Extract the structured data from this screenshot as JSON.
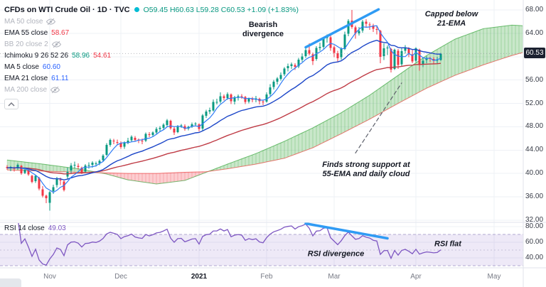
{
  "legend": {
    "title": "CFDs on WTI Crude Oil · 1D · TVC",
    "ohlc": "O59.45 H60.63 L59.28 C60.53 +1.09 (+1.83%)",
    "rows": [
      {
        "name": "MA 50 close",
        "hidden": true,
        "values": []
      },
      {
        "name": "EMA 55 close",
        "hidden": false,
        "values": [
          {
            "text": "58.67",
            "color": "#f23645"
          }
        ]
      },
      {
        "name": "BB 20 close 2",
        "hidden": true,
        "values": []
      },
      {
        "name": "Ichimoku 9 26 52 26",
        "hidden": false,
        "values": [
          {
            "text": "58.96",
            "color": "#089981"
          },
          {
            "text": "54.61",
            "color": "#f23645"
          }
        ]
      },
      {
        "name": "MA 5 close",
        "hidden": false,
        "values": [
          {
            "text": "60.60",
            "color": "#2962ff"
          }
        ]
      },
      {
        "name": "EMA 21 close",
        "hidden": false,
        "values": [
          {
            "text": "61.11",
            "color": "#2962ff"
          }
        ]
      },
      {
        "name": "MA 200 close",
        "hidden": true,
        "values": []
      }
    ]
  },
  "rsi_legend": {
    "name": "RSI 14 close",
    "value": "49.03"
  },
  "price_axis": {
    "labels": [
      {
        "text": "68.00",
        "value": 68
      },
      {
        "text": "64.00",
        "value": 64
      },
      {
        "text": "56.00",
        "value": 56
      },
      {
        "text": "52.00",
        "value": 52
      },
      {
        "text": "48.00",
        "value": 48
      },
      {
        "text": "44.00",
        "value": 44
      },
      {
        "text": "40.00",
        "value": 40
      },
      {
        "text": "36.00",
        "value": 36
      },
      {
        "text": "32.00",
        "value": 32
      }
    ],
    "grid_values": [
      68,
      64,
      60,
      56,
      52,
      48,
      44,
      40,
      36,
      32
    ],
    "last_price_label": "60.53"
  },
  "rsi_axis": {
    "labels": [
      {
        "text": "80.00",
        "value": 80
      },
      {
        "text": "60.00",
        "value": 60
      },
      {
        "text": "40.00",
        "value": 40
      }
    ]
  },
  "time_axis": {
    "labels": [
      {
        "text": "Nov",
        "day": 12,
        "year": false
      },
      {
        "text": "Dec",
        "day": 32,
        "year": false
      },
      {
        "text": "2021",
        "day": 54,
        "year": true
      },
      {
        "text": "Feb",
        "day": 73,
        "year": false
      },
      {
        "text": "Mar",
        "day": 92,
        "year": false
      },
      {
        "text": "Apr",
        "day": 115,
        "year": false
      },
      {
        "text": "May",
        "day": 137,
        "year": false
      }
    ]
  },
  "colors": {
    "up": "#089981",
    "down": "#f23645",
    "cloud_up": "rgba(76,175,80,0.30)",
    "cloud_down": "rgba(244,88,99,0.30)",
    "senkou_a": "#4caf50",
    "senkou_b": "#ef5350",
    "ma5": "#2e7bf6",
    "ema21": "#1c46c8",
    "ema55": "#bf3b45",
    "rsi": "#7e57c2",
    "rsi_band": "rgba(126,87,194,0.13)",
    "rsi_band_line": "#b1a8d0",
    "rsi_mid_line": "#c6c2d8",
    "trendline": "#2f9bf4",
    "pointer": "#5d606b",
    "grid": "#eef1f6",
    "border": "#e0e3eb",
    "last_price_line": "#9598a1",
    "badge_bg": "#1b2130",
    "realtime_dot": "#00bcd4",
    "ohlc_text": "#089981"
  },
  "chart_data": {
    "type": "candlestick",
    "symbol": "CFDs on WTI Crude Oil",
    "timeframe": "1D",
    "exchange": "TVC",
    "last": {
      "o": 59.45,
      "h": 60.63,
      "l": 59.28,
      "c": 60.53,
      "change": 1.09,
      "change_pct": 1.83
    },
    "price_range": [
      32,
      68
    ],
    "rsi_range": [
      20,
      90
    ],
    "candles": [
      [
        41.1,
        41.4,
        40.6,
        40.96
      ],
      [
        40.9,
        41.3,
        40.4,
        41.12
      ],
      [
        41.0,
        41.2,
        40.3,
        40.83
      ],
      [
        40.9,
        41.7,
        40.6,
        41.46
      ],
      [
        41.3,
        41.5,
        39.8,
        40.03
      ],
      [
        40.1,
        40.9,
        39.9,
        40.64
      ],
      [
        40.6,
        40.8,
        39.6,
        39.85
      ],
      [
        39.6,
        39.8,
        38.3,
        38.56
      ],
      [
        38.7,
        39.7,
        38.4,
        39.57
      ],
      [
        39.2,
        39.4,
        37.1,
        37.39
      ],
      [
        37.3,
        37.8,
        35.9,
        36.17
      ],
      [
        36.2,
        36.4,
        34.9,
        35.79
      ],
      [
        35.0,
        37.0,
        33.64,
        36.81
      ],
      [
        37.0,
        38.1,
        36.5,
        37.66
      ],
      [
        38.0,
        39.4,
        37.6,
        39.15
      ],
      [
        38.9,
        39.3,
        38.0,
        38.79
      ],
      [
        38.6,
        38.8,
        36.9,
        37.14
      ],
      [
        39.5,
        41.0,
        39.0,
        40.29
      ],
      [
        40.5,
        41.8,
        40.0,
        41.36
      ],
      [
        41.4,
        42.0,
        40.9,
        41.45
      ],
      [
        41.3,
        41.7,
        40.7,
        41.12
      ],
      [
        41.0,
        41.2,
        39.9,
        40.13
      ],
      [
        40.3,
        41.6,
        40.1,
        41.34
      ],
      [
        41.3,
        41.9,
        40.8,
        41.43
      ],
      [
        41.5,
        42.1,
        41.0,
        41.82
      ],
      [
        41.7,
        42.0,
        41.2,
        41.74
      ],
      [
        41.8,
        42.4,
        41.4,
        42.15
      ],
      [
        42.3,
        43.3,
        42.0,
        43.06
      ],
      [
        43.2,
        45.2,
        43.0,
        44.91
      ],
      [
        44.9,
        46.0,
        44.6,
        45.71
      ],
      [
        45.6,
        45.9,
        45.0,
        45.53
      ],
      [
        45.4,
        45.8,
        44.9,
        45.34
      ],
      [
        45.2,
        45.5,
        44.2,
        44.55
      ],
      [
        44.6,
        45.5,
        44.2,
        45.28
      ],
      [
        45.3,
        46.1,
        45.0,
        45.64
      ],
      [
        45.7,
        46.5,
        45.4,
        46.26
      ],
      [
        46.1,
        46.4,
        45.5,
        45.76
      ],
      [
        45.8,
        46.0,
        45.2,
        45.6
      ],
      [
        45.6,
        46.0,
        45.0,
        45.52
      ],
      [
        45.6,
        47.0,
        45.4,
        46.78
      ],
      [
        46.7,
        47.1,
        46.2,
        46.57
      ],
      [
        46.6,
        47.2,
        46.3,
        46.99
      ],
      [
        47.0,
        47.9,
        46.7,
        47.62
      ],
      [
        47.6,
        48.1,
        47.2,
        47.82
      ],
      [
        47.8,
        48.6,
        47.5,
        48.36
      ],
      [
        48.3,
        49.3,
        48.0,
        49.1
      ],
      [
        49.0,
        49.2,
        47.5,
        47.74
      ],
      [
        47.7,
        48.0,
        46.6,
        47.02
      ],
      [
        47.1,
        48.3,
        46.9,
        48.12
      ],
      [
        48.1,
        48.5,
        47.8,
        48.23
      ],
      [
        48.1,
        48.4,
        47.3,
        47.62
      ],
      [
        47.7,
        48.2,
        47.4,
        48.0
      ],
      [
        48.0,
        48.7,
        47.8,
        48.4
      ],
      [
        48.4,
        48.8,
        48.1,
        48.52
      ],
      [
        48.4,
        48.6,
        47.2,
        47.62
      ],
      [
        47.7,
        50.2,
        47.3,
        49.93
      ],
      [
        49.9,
        50.9,
        49.5,
        50.63
      ],
      [
        50.6,
        51.3,
        50.2,
        50.83
      ],
      [
        50.8,
        52.7,
        50.6,
        52.24
      ],
      [
        52.2,
        52.8,
        51.8,
        52.25
      ],
      [
        52.3,
        53.9,
        52.0,
        53.21
      ],
      [
        53.2,
        53.5,
        52.5,
        52.91
      ],
      [
        52.9,
        53.9,
        52.6,
        53.57
      ],
      [
        53.5,
        53.7,
        51.9,
        52.36
      ],
      [
        52.3,
        53.3,
        51.8,
        52.98
      ],
      [
        53.0,
        53.5,
        52.5,
        53.24
      ],
      [
        53.2,
        53.6,
        52.8,
        53.13
      ],
      [
        53.1,
        53.3,
        51.9,
        52.27
      ],
      [
        52.3,
        53.0,
        52.0,
        52.77
      ],
      [
        52.8,
        53.1,
        52.2,
        52.61
      ],
      [
        52.6,
        53.3,
        52.2,
        52.85
      ],
      [
        52.8,
        53.0,
        51.8,
        52.34
      ],
      [
        52.3,
        52.6,
        51.7,
        52.2
      ],
      [
        52.3,
        53.9,
        52.1,
        53.55
      ],
      [
        53.6,
        55.3,
        53.3,
        54.76
      ],
      [
        54.8,
        56.0,
        54.4,
        55.69
      ],
      [
        55.7,
        56.5,
        55.2,
        56.23
      ],
      [
        56.2,
        57.3,
        55.9,
        56.85
      ],
      [
        57.0,
        58.2,
        56.7,
        57.97
      ],
      [
        58.0,
        58.8,
        57.5,
        58.36
      ],
      [
        58.4,
        59.0,
        57.9,
        58.68
      ],
      [
        58.6,
        58.9,
        57.7,
        58.24
      ],
      [
        58.3,
        59.8,
        58.0,
        59.47
      ],
      [
        59.5,
        60.6,
        59.1,
        60.05
      ],
      [
        60.1,
        61.5,
        59.8,
        61.14
      ],
      [
        61.1,
        62.3,
        60.2,
        60.52
      ],
      [
        60.4,
        60.7,
        58.6,
        59.24
      ],
      [
        59.6,
        61.8,
        59.3,
        61.49
      ],
      [
        61.5,
        62.4,
        61.0,
        61.67
      ],
      [
        61.7,
        63.4,
        61.4,
        63.22
      ],
      [
        63.2,
        63.8,
        62.4,
        63.53
      ],
      [
        63.3,
        63.6,
        61.0,
        61.5
      ],
      [
        61.6,
        61.9,
        59.9,
        60.64
      ],
      [
        60.6,
        61.0,
        59.2,
        59.75
      ],
      [
        59.9,
        61.6,
        59.5,
        61.28
      ],
      [
        61.3,
        64.3,
        61.1,
        63.83
      ],
      [
        63.9,
        66.4,
        63.5,
        66.09
      ],
      [
        66.2,
        67.98,
        64.8,
        65.05
      ],
      [
        65.0,
        65.3,
        63.1,
        64.01
      ],
      [
        64.0,
        65.1,
        63.6,
        64.44
      ],
      [
        64.5,
        66.3,
        64.1,
        66.02
      ],
      [
        66.0,
        66.4,
        65.0,
        65.61
      ],
      [
        65.5,
        65.9,
        64.6,
        65.39
      ],
      [
        65.3,
        65.6,
        64.2,
        64.8
      ],
      [
        64.7,
        65.2,
        63.8,
        64.6
      ],
      [
        64.4,
        64.6,
        58.9,
        60.0
      ],
      [
        60.1,
        62.3,
        59.4,
        61.44
      ],
      [
        61.5,
        61.9,
        60.3,
        61.55
      ],
      [
        61.3,
        61.5,
        57.3,
        57.76
      ],
      [
        57.9,
        61.4,
        57.7,
        61.18
      ],
      [
        61.0,
        61.3,
        57.9,
        58.56
      ],
      [
        58.7,
        61.5,
        58.3,
        60.97
      ],
      [
        61.0,
        62.0,
        60.5,
        61.56
      ],
      [
        61.4,
        61.6,
        59.9,
        60.55
      ],
      [
        60.4,
        61.1,
        58.9,
        59.16
      ],
      [
        59.3,
        61.6,
        59.0,
        61.45
      ],
      [
        61.2,
        61.4,
        57.6,
        58.65
      ],
      [
        58.7,
        59.9,
        58.2,
        59.33
      ],
      [
        59.4,
        60.1,
        58.9,
        59.77
      ],
      [
        59.7,
        60.0,
        59.1,
        59.6
      ],
      [
        59.6,
        59.9,
        58.8,
        59.32
      ],
      [
        59.4,
        60.0,
        58.9,
        59.44
      ],
      [
        59.45,
        60.63,
        59.28,
        60.53
      ]
    ],
    "ichimoku_cloud": {
      "params": "9 26 52 26",
      "senkou_points": [
        [
          0,
          42.3,
          40.6
        ],
        [
          10,
          41.6,
          40.4
        ],
        [
          20,
          40.8,
          40.2
        ],
        [
          28,
          39.9,
          40.1
        ],
        [
          34,
          38.9,
          40.0
        ],
        [
          42,
          38.2,
          40.0
        ],
        [
          50,
          38.8,
          40.2
        ],
        [
          56,
          40.2,
          40.3
        ],
        [
          62,
          41.6,
          40.8
        ],
        [
          70,
          43.4,
          41.6
        ],
        [
          78,
          45.5,
          42.6
        ],
        [
          86,
          47.8,
          44.4
        ],
        [
          94,
          50.4,
          46.8
        ],
        [
          102,
          53.4,
          49.3
        ],
        [
          110,
          56.8,
          52.0
        ],
        [
          118,
          60.2,
          54.6
        ],
        [
          126,
          63.0,
          56.8
        ],
        [
          134,
          64.8,
          58.6
        ],
        [
          142,
          65.4,
          60.2
        ],
        [
          148,
          65.2,
          61.2
        ]
      ]
    },
    "overlays": [
      {
        "kind": "sma",
        "period": 5,
        "color_key": "ma5"
      },
      {
        "kind": "ema",
        "period": 21,
        "color_key": "ema21"
      },
      {
        "kind": "ema",
        "period": 55,
        "color_key": "ema55"
      }
    ],
    "rsi": {
      "period": 14,
      "last": 49.03,
      "bands": [
        70,
        50,
        30
      ]
    },
    "drawings": {
      "price_trendline": {
        "from": {
          "day": 84,
          "price": 61.6
        },
        "to": {
          "day": 104.5,
          "price": 68.1
        }
      },
      "rsi_trendline": {
        "from": {
          "day": 84,
          "rsi": 84
        },
        "to": {
          "day": 107,
          "rsi": 65
        }
      },
      "support_pointer": {
        "from": {
          "day": 98,
          "price": 43.5
        },
        "to": {
          "day": 111,
          "price": 55.5
        }
      },
      "texts": [
        {
          "name": "annotation-bearish-divergence",
          "text": "Bearish\ndivergence",
          "day": 72,
          "price": 64.6,
          "bold": true,
          "italic": false
        },
        {
          "name": "annotation-capped-below-21ema",
          "text": "Capped below\n21-EMA",
          "day": 125,
          "price": 66.4,
          "bold": false,
          "italic": true
        },
        {
          "name": "annotation-support",
          "text": "Finds strong support at\n55-EMA and daily cloud",
          "day": 101,
          "price": 40.6,
          "bold": false,
          "italic": true
        },
        {
          "name": "annotation-rsi-divergence",
          "text": "RSI divergence",
          "day": 92.5,
          "rsi": 45,
          "bold": false,
          "italic": true
        },
        {
          "name": "annotation-rsi-flat",
          "text": "RSI flat",
          "day": 124,
          "rsi": 57,
          "bold": false,
          "italic": true
        }
      ]
    }
  }
}
